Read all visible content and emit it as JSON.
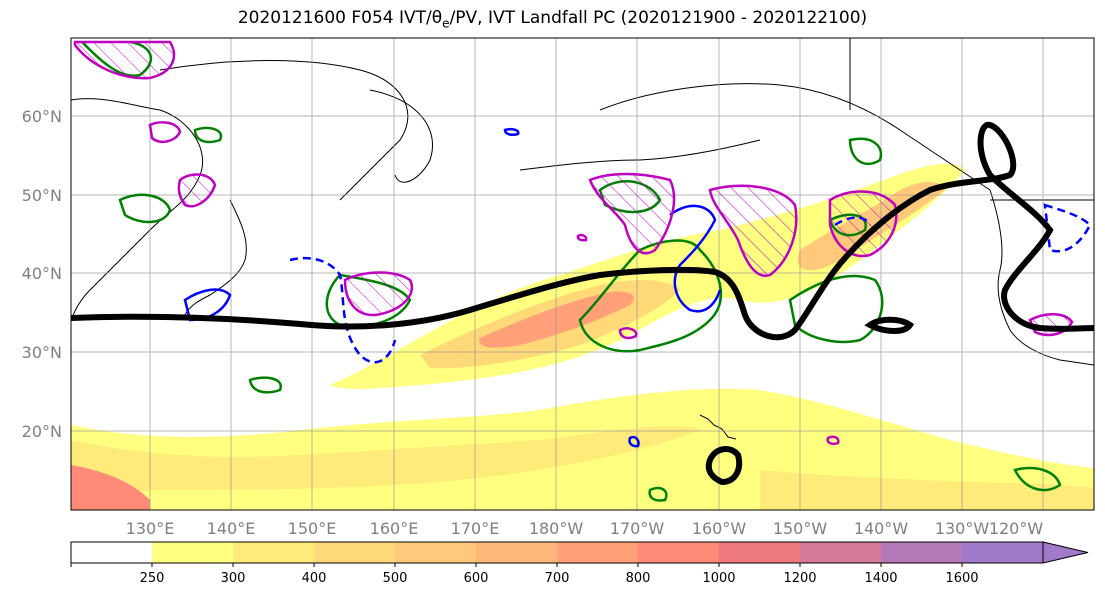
{
  "title": "2020121600 F054 IVT/θe/PV, IVT Landfall PC (2020121900 - 2020122100)",
  "map": {
    "lat_ticks": [
      "60°N",
      "50°N",
      "40°N",
      "30°N",
      "20°N"
    ],
    "lon_ticks": [
      "130°E",
      "140°E",
      "150°E",
      "160°E",
      "170°E",
      "180°W",
      "170°W",
      "160°W",
      "150°W",
      "140°W",
      "130°W",
      "120°W"
    ]
  },
  "colorbar": {
    "levels": [
      "250",
      "300",
      "400",
      "500",
      "600",
      "700",
      "800",
      "1000",
      "1200",
      "1400",
      "1600"
    ],
    "colors": [
      "#ffffff",
      "#ffff80",
      "#ffeb7a",
      "#ffd978",
      "#ffc87a",
      "#ffb87a",
      "#ffa078",
      "#ff8a78",
      "#ee7a80",
      "#d47a98",
      "#b47ab8",
      "#a07ac8"
    ]
  },
  "colors": {
    "pv_contour": "#008000",
    "theta_e_contour": "#0000ff",
    "pc_contour": "#c000c0",
    "ivt_pc_line": "#000000"
  }
}
